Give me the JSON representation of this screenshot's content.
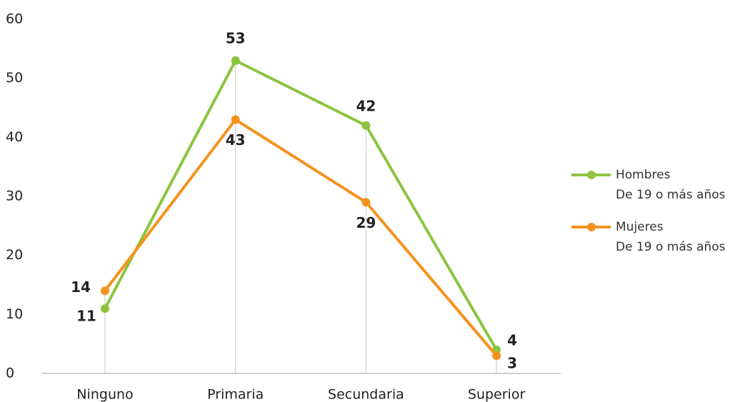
{
  "chart_data": {
    "type": "line",
    "categories": [
      "Ninguno",
      "Primaria",
      "Secundaria",
      "Superior"
    ],
    "series": [
      {
        "name": "Hombres",
        "name_detail": "De 19 o más años",
        "color": "#8cc43f",
        "values": [
          11,
          53,
          42,
          4
        ]
      },
      {
        "name": "Mujeres",
        "name_detail": "De 19 o más años",
        "color": "#f5921e",
        "values": [
          14,
          43,
          29,
          3
        ]
      }
    ],
    "ylim": [
      0,
      60
    ],
    "yticks": [
      0,
      10,
      20,
      30,
      40,
      50,
      60
    ],
    "grid": false,
    "legend": "right"
  }
}
